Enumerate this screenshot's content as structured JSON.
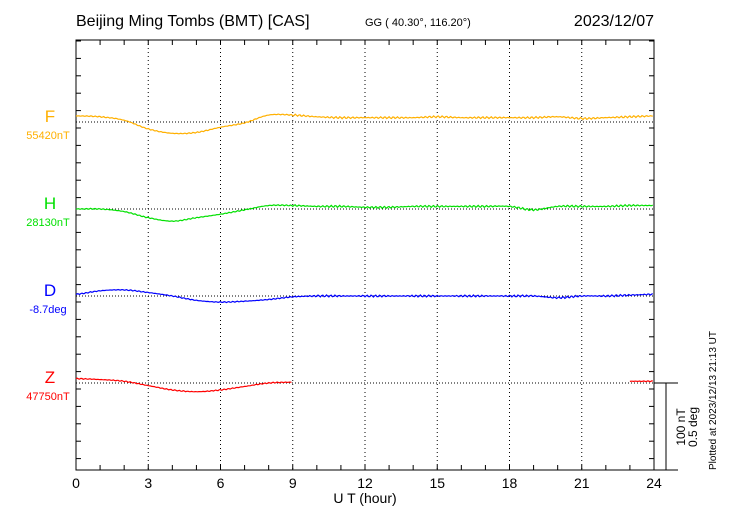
{
  "header": {
    "title": "Beijing Ming Tombs (BMT)  [CAS]",
    "coords": "GG ( 40.30°, 116.20°)",
    "date": "2023/12/07"
  },
  "footer": {
    "plotted": "Plotted at 2023/12/13 21:13 UT"
  },
  "chart_data": {
    "type": "line",
    "xlabel": "U T (hour)",
    "xlim": [
      0,
      24
    ],
    "xticks": [
      "0",
      "3",
      "6",
      "9",
      "12",
      "15",
      "18",
      "21",
      "24"
    ],
    "grid": "dotted vertical every 3 h, dotted baseline per component",
    "scale": {
      "nT": "100 nT",
      "deg": "0.5 deg"
    },
    "x": [
      0,
      1,
      2,
      3,
      4,
      5,
      6,
      7,
      8,
      9,
      10,
      11,
      12,
      13,
      14,
      15,
      16,
      17,
      18,
      19,
      20,
      21,
      22,
      23,
      24
    ],
    "series": [
      {
        "name": "F",
        "baseline_label": "55420nT",
        "unit": "nT",
        "color": "#ffb000",
        "values": [
          7,
          6,
          2,
          -8,
          -13,
          -12,
          -6,
          -1,
          8,
          8,
          6,
          5,
          5,
          5,
          5,
          6,
          5,
          5,
          5,
          5,
          6,
          4,
          5,
          6,
          7
        ]
      },
      {
        "name": "H",
        "baseline_label": "28130nT",
        "unit": "nT",
        "color": "#00e000",
        "values": [
          0,
          0,
          -3,
          -10,
          -14,
          -10,
          -6,
          -1,
          4,
          4,
          3,
          3,
          2,
          2,
          3,
          3,
          3,
          3,
          3,
          -1,
          3,
          3,
          3,
          4,
          4
        ]
      },
      {
        "name": "D",
        "baseline_label": "-8.7deg",
        "unit": "deg",
        "color": "#0000ff",
        "values": [
          0.01,
          0.03,
          0.035,
          0.02,
          0.0,
          -0.025,
          -0.035,
          -0.03,
          -0.02,
          -0.005,
          0,
          0,
          0,
          0,
          0,
          0,
          0,
          0,
          0,
          0,
          -0.01,
          0,
          0,
          0.005,
          0.01
        ]
      },
      {
        "name": "Z",
        "baseline_label": "47750nT",
        "unit": "nT",
        "color": "#ff0000",
        "values": [
          5,
          4,
          2,
          -3,
          -8,
          -10,
          -8,
          -4,
          0,
          1,
          null,
          null,
          null,
          null,
          null,
          null,
          null,
          null,
          null,
          null,
          null,
          null,
          null,
          2,
          2
        ]
      }
    ]
  }
}
